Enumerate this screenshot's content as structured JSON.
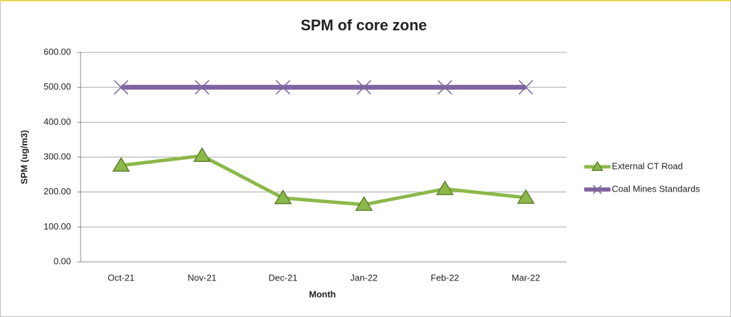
{
  "chart_data": {
    "type": "line",
    "title": "SPM of core zone",
    "x_label": "Month",
    "y_label": "SPM (ug/m3)",
    "categories": [
      "Oct-21",
      "Nov-21",
      "Dec-21",
      "Jan-22",
      "Feb-22",
      "Mar-22"
    ],
    "series": [
      {
        "name": "External CT Road",
        "color": "#8cb84a",
        "values": [
          276,
          304,
          183,
          164,
          209,
          184
        ]
      },
      {
        "name": "Coal Mines Standards",
        "color": "#8064a2",
        "values": [
          500,
          500,
          500,
          500,
          500,
          500
        ]
      }
    ],
    "ylim": [
      0,
      600
    ],
    "yticks": [
      {
        "value": 0,
        "label": "0.00"
      },
      {
        "value": 100,
        "label": "100.00"
      },
      {
        "value": 200,
        "label": "200.00"
      },
      {
        "value": 300,
        "label": "300.00"
      },
      {
        "value": 400,
        "label": "400.00"
      },
      {
        "value": 500,
        "label": "500.00"
      },
      {
        "value": 600,
        "label": "600.00"
      }
    ],
    "grid": true,
    "legend": "right"
  }
}
